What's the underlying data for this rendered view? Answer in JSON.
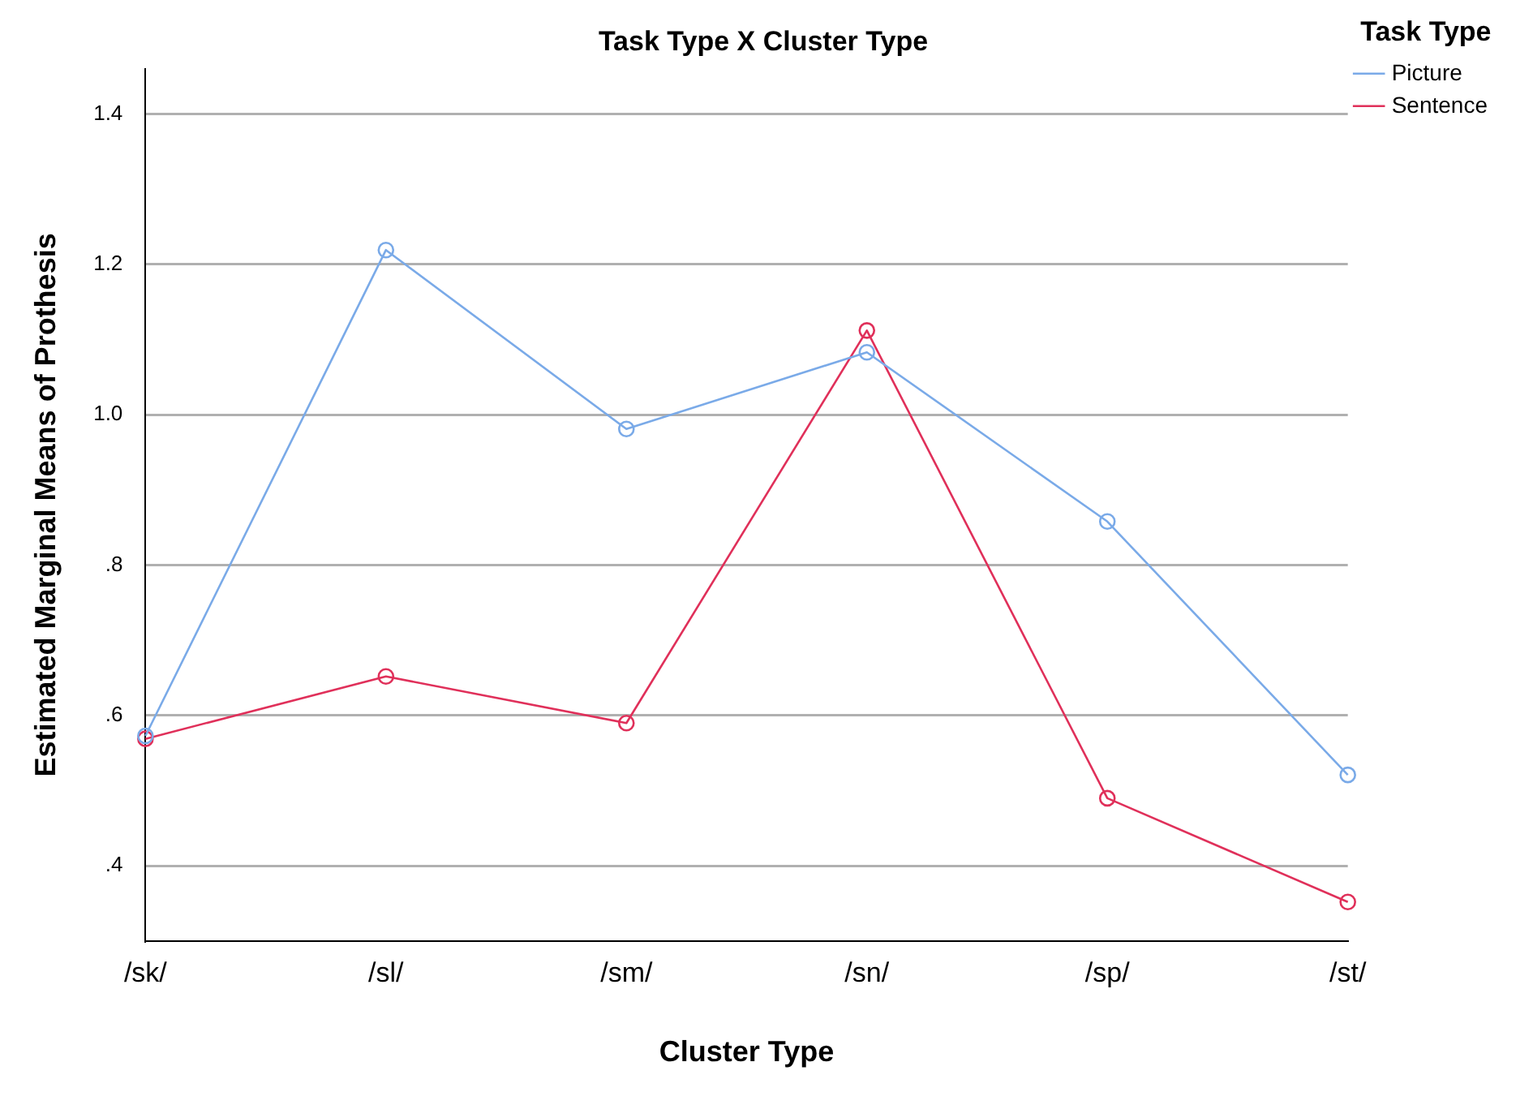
{
  "chart_data": {
    "type": "line",
    "title": "Task Type X Cluster Type",
    "xlabel": "Cluster Type",
    "ylabel": "Estimated Marginal Means of Prothesis",
    "legend_title": "Task Type",
    "categories": [
      "/sk/",
      "/sl/",
      "/sm/",
      "/sn/",
      "/sp/",
      "/st/"
    ],
    "series": [
      {
        "name": "Picture",
        "color": "#7aaae8",
        "values": [
          0.573,
          1.219,
          0.981,
          1.083,
          0.858,
          0.521
        ]
      },
      {
        "name": "Sentence",
        "color": "#e0305a",
        "values": [
          0.569,
          0.652,
          0.59,
          1.112,
          0.49,
          0.352
        ]
      }
    ],
    "ylim": [
      0.3,
      1.46
    ],
    "yticks": [
      {
        "value": 0.4,
        "label": ".4"
      },
      {
        "value": 0.6,
        "label": ".6"
      },
      {
        "value": 0.8,
        "label": ".8"
      },
      {
        "value": 1.0,
        "label": "1.0"
      },
      {
        "value": 1.2,
        "label": "1.2"
      },
      {
        "value": 1.4,
        "label": "1.4"
      }
    ],
    "grid": "y",
    "legend": "top right",
    "marker": "circle",
    "line_style": "solid"
  }
}
